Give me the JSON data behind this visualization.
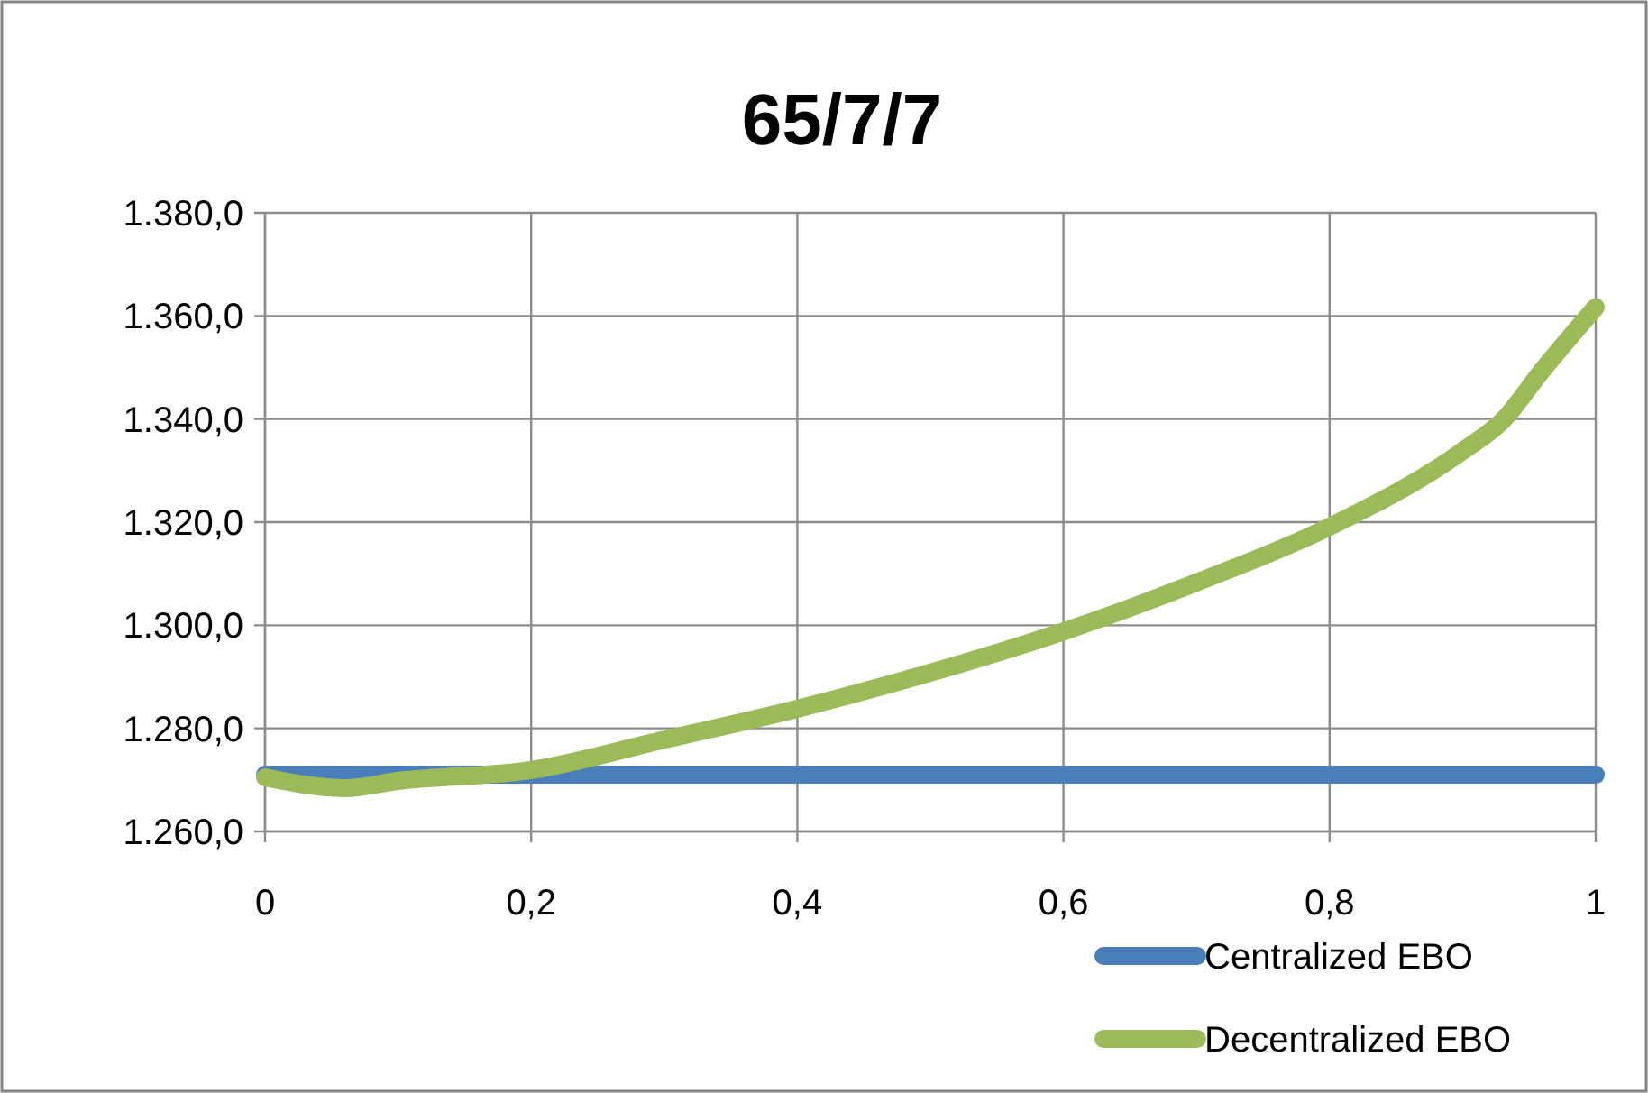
{
  "chart_data": {
    "type": "line",
    "title": "65/7/7",
    "x": [
      0,
      0.06,
      0.1,
      0.2,
      0.3,
      0.4,
      0.5,
      0.6,
      0.7,
      0.8,
      0.9,
      0.93,
      0.96,
      1
    ],
    "series": [
      {
        "name": "Centralized EBO",
        "color": "#4a7ebb",
        "values": [
          1271,
          1271,
          1271,
          1271,
          1271,
          1271,
          1271,
          1271,
          1271,
          1271,
          1271,
          1271,
          1271,
          1271
        ]
      },
      {
        "name": "Decentralized EBO",
        "color": "#9bbb59",
        "values": [
          1270.5,
          1268.4,
          1269.8,
          1271.9,
          1277.8,
          1283.8,
          1290.8,
          1298.8,
          1308.3,
          1319.1,
          1333.8,
          1339.7,
          1349.5,
          1361.7
        ]
      }
    ],
    "xlim": [
      0,
      1
    ],
    "xticks": [
      0,
      {
        "value": 0.2,
        "label": "0,2"
      },
      {
        "value": 0.4,
        "label": "0,4"
      },
      {
        "value": 0.6,
        "label": "0,6"
      },
      {
        "value": 0.8,
        "label": "0,8"
      },
      1
    ],
    "ylim": [
      1260,
      1380
    ],
    "yticks": [
      {
        "value": 1260,
        "label": "1.260,0"
      },
      {
        "value": 1280,
        "label": "1.280,0"
      },
      {
        "value": 1300,
        "label": "1.300,0"
      },
      {
        "value": 1320,
        "label": "1.320,0"
      },
      {
        "value": 1340,
        "label": "1.340,0"
      },
      {
        "value": 1360,
        "label": "1.360,0"
      },
      {
        "value": 1380,
        "label": "1.380,0"
      }
    ],
    "grid": true,
    "legend": "bottom right",
    "marker": "none",
    "line_style": "solid"
  }
}
